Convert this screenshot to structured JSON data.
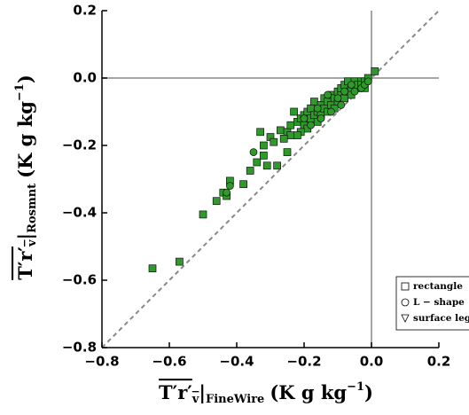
{
  "chart_data": {
    "type": "scatter",
    "xlabel": {
      "symbol": "T′r′",
      "symbol_sub": "v",
      "subscript": "FineWire",
      "units": "(K g kg",
      "units_exp": "−1",
      "units_end": ")"
    },
    "ylabel": {
      "symbol": "T′r′",
      "symbol_sub": "v",
      "subscript": "Rosmnt",
      "units": "(K g kg",
      "units_exp": "−1",
      "units_end": ")"
    },
    "xlim": [
      -0.8,
      0.2
    ],
    "ylim": [
      -0.8,
      0.2
    ],
    "xticks": [
      {
        "value": -0.8,
        "label": "−0.8"
      },
      {
        "value": -0.6,
        "label": "−0.6"
      },
      {
        "value": -0.4,
        "label": "−0.4"
      },
      {
        "value": -0.2,
        "label": "−0.2"
      },
      {
        "value": 0,
        "label": "0.0"
      },
      0.2
    ],
    "yticks": [
      {
        "value": -0.8,
        "label": "−0.8"
      },
      {
        "value": -0.6,
        "label": "−0.6"
      },
      {
        "value": -0.4,
        "label": "−0.4"
      },
      {
        "value": -0.2,
        "label": "−0.2"
      },
      {
        "value": 0,
        "label": "0.0"
      },
      0.2
    ],
    "legend": "lower right",
    "series": [
      {
        "name": "rectangle",
        "marker": "square",
        "color": "#2e9a2a",
        "x": [
          -0.65,
          -0.57,
          -0.5,
          -0.46,
          -0.44,
          -0.43,
          -0.42,
          -0.38,
          -0.36,
          -0.34,
          -0.32,
          -0.31,
          -0.33,
          -0.32,
          -0.3,
          -0.29,
          -0.27,
          -0.25,
          -0.24,
          -0.25,
          -0.28,
          -0.22,
          -0.21,
          -0.2,
          -0.2,
          -0.19,
          -0.19,
          -0.18,
          -0.18,
          -0.17,
          -0.17,
          -0.16,
          -0.16,
          -0.15,
          -0.15,
          -0.14,
          -0.14,
          -0.13,
          -0.13,
          -0.12,
          -0.12,
          -0.11,
          -0.11,
          -0.1,
          -0.1,
          -0.09,
          -0.09,
          -0.08,
          -0.08,
          -0.07,
          -0.07,
          -0.06,
          -0.06,
          -0.05,
          -0.05,
          -0.04,
          -0.04,
          -0.03,
          -0.03,
          -0.02,
          -0.01,
          -0.02,
          0.01,
          -0.23,
          -0.24,
          -0.21,
          -0.26,
          -0.22
        ],
        "y": [
          -0.565,
          -0.545,
          -0.405,
          -0.365,
          -0.34,
          -0.35,
          -0.305,
          -0.315,
          -0.275,
          -0.25,
          -0.23,
          -0.26,
          -0.16,
          -0.2,
          -0.175,
          -0.19,
          -0.155,
          -0.16,
          -0.17,
          -0.22,
          -0.26,
          -0.13,
          -0.12,
          -0.11,
          -0.14,
          -0.1,
          -0.15,
          -0.12,
          -0.09,
          -0.11,
          -0.07,
          -0.1,
          -0.13,
          -0.08,
          -0.11,
          -0.06,
          -0.09,
          -0.07,
          -0.1,
          -0.05,
          -0.08,
          -0.06,
          -0.09,
          -0.04,
          -0.07,
          -0.05,
          -0.03,
          -0.06,
          -0.02,
          -0.04,
          -0.01,
          -0.03,
          -0.05,
          -0.02,
          -0.01,
          -0.03,
          -0.02,
          -0.01,
          -0.02,
          -0.01,
          0.0,
          -0.03,
          0.02,
          -0.1,
          -0.14,
          -0.16,
          -0.18,
          -0.17
        ]
      },
      {
        "name": "L − shape",
        "marker": "circle",
        "color": "#2e9a2a",
        "x": [
          -0.42,
          -0.43,
          -0.35,
          -0.2,
          -0.18,
          -0.16,
          -0.15,
          -0.13,
          -0.12,
          -0.1,
          -0.09,
          -0.08,
          -0.06,
          -0.05,
          -0.03,
          -0.02,
          -0.01
        ],
        "y": [
          -0.32,
          -0.34,
          -0.22,
          -0.12,
          -0.14,
          -0.09,
          -0.12,
          -0.05,
          -0.1,
          -0.06,
          -0.08,
          -0.04,
          -0.02,
          -0.04,
          -0.03,
          -0.02,
          -0.01
        ]
      },
      {
        "name": "surface leg",
        "marker": "triangle",
        "color": "#2e9a2a",
        "x": [],
        "y": []
      }
    ]
  }
}
